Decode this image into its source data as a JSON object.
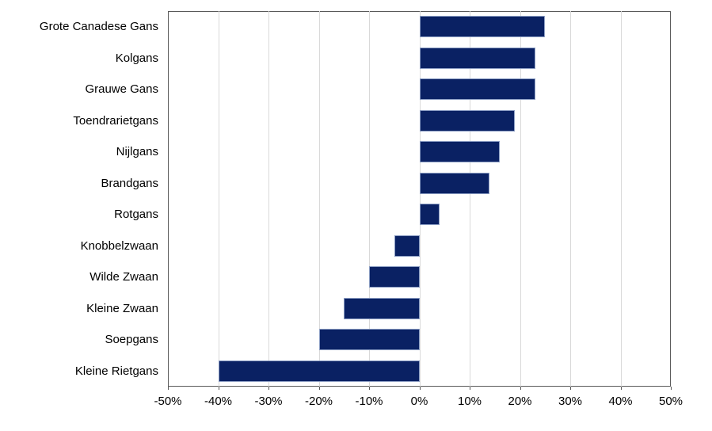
{
  "chart_data": {
    "type": "bar",
    "orientation": "horizontal",
    "title": "",
    "xlabel": "",
    "ylabel": "",
    "categories": [
      "Grote Canadese Gans",
      "Kolgans",
      "Grauwe Gans",
      "Toendrarietgans",
      "Nijlgans",
      "Brandgans",
      "Rotgans",
      "Knobbelzwaan",
      "Wilde Zwaan",
      "Kleine Zwaan",
      "Soepgans",
      "Kleine Rietgans"
    ],
    "values": [
      25,
      23,
      23,
      19,
      16,
      14,
      4,
      -5,
      -10,
      -15,
      -20,
      -40
    ],
    "value_unit": "%",
    "xlim": [
      -50,
      50
    ],
    "xticks": [
      -50,
      -40,
      -30,
      -20,
      -10,
      0,
      10,
      20,
      30,
      40,
      50
    ],
    "xtick_labels": [
      "-50%",
      "-40%",
      "-30%",
      "-20%",
      "-10%",
      "0%",
      "10%",
      "20%",
      "30%",
      "40%",
      "50%"
    ],
    "grid": "vertical-only",
    "legend": "none",
    "colors": {
      "bar_fill": "#0a2163",
      "bar_border": "#8b9dc3",
      "gridline": "#d9d9d9",
      "plot_border": "#595959",
      "label_text": "#000000",
      "background": "#ffffff"
    }
  }
}
